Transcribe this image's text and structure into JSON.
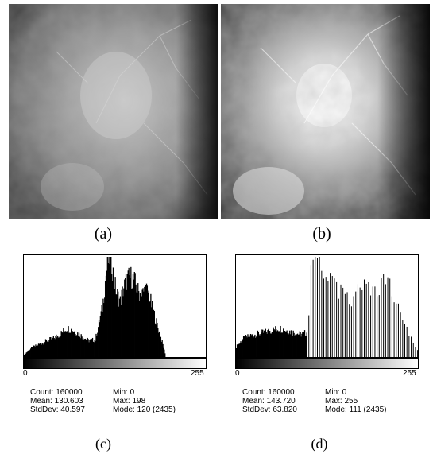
{
  "figure": {
    "caption_a": "(a)",
    "caption_b": "(b)",
    "caption_c": "(c)",
    "caption_d": "(d)"
  },
  "panel_a": {
    "description_icon": "mammogram-image-original"
  },
  "panel_b": {
    "description_icon": "mammogram-image-enhanced"
  },
  "histogram_c": {
    "axis_min": "0",
    "axis_max": "255",
    "count": "Count: 160000",
    "mean": "Mean: 130.603",
    "stddev": "StdDev: 40.597",
    "min": "Min: 0",
    "max": "Max: 198",
    "mode": "Mode: 120 (2435)"
  },
  "histogram_d": {
    "axis_min": "0",
    "axis_max": "255",
    "count": "Count: 160000",
    "mean": "Mean: 143.720",
    "stddev": "StdDev: 63.820",
    "min": "Min: 0",
    "max": "Max: 255",
    "mode": "Mode: 111 (2435)"
  },
  "chart_data": [
    {
      "type": "bar",
      "id": "histogram-c",
      "xlim": [
        0,
        255
      ],
      "x": [
        0,
        10,
        20,
        30,
        40,
        50,
        60,
        70,
        80,
        90,
        100,
        110,
        115,
        118,
        120,
        123,
        126,
        130,
        135,
        140,
        145,
        150,
        155,
        160,
        165,
        170,
        175,
        180,
        185,
        190,
        195,
        198
      ],
      "values": [
        60,
        220,
        300,
        380,
        450,
        550,
        700,
        640,
        520,
        400,
        420,
        1200,
        2000,
        2350,
        2435,
        2300,
        1900,
        1550,
        1350,
        1700,
        1900,
        1950,
        1850,
        1600,
        1500,
        1650,
        1550,
        1200,
        900,
        600,
        300,
        100
      ]
    },
    {
      "type": "bar",
      "id": "histogram-d",
      "xlim": [
        0,
        255
      ],
      "x": [
        0,
        10,
        20,
        30,
        40,
        50,
        60,
        70,
        80,
        90,
        100,
        105,
        111,
        115,
        120,
        125,
        130,
        135,
        140,
        145,
        150,
        155,
        160,
        165,
        170,
        175,
        180,
        185,
        190,
        195,
        200,
        205,
        210,
        215,
        220,
        225,
        230,
        235,
        240,
        245,
        250,
        255
      ],
      "values": [
        250,
        450,
        520,
        560,
        600,
        650,
        700,
        650,
        600,
        550,
        600,
        2000,
        2435,
        2400,
        2250,
        2100,
        1950,
        1800,
        1700,
        1600,
        1500,
        1400,
        1350,
        1500,
        1650,
        1700,
        1650,
        1600,
        1700,
        1650,
        1650,
        1750,
        1900,
        1700,
        1500,
        1300,
        1100,
        900,
        700,
        500,
        300,
        150
      ]
    }
  ]
}
